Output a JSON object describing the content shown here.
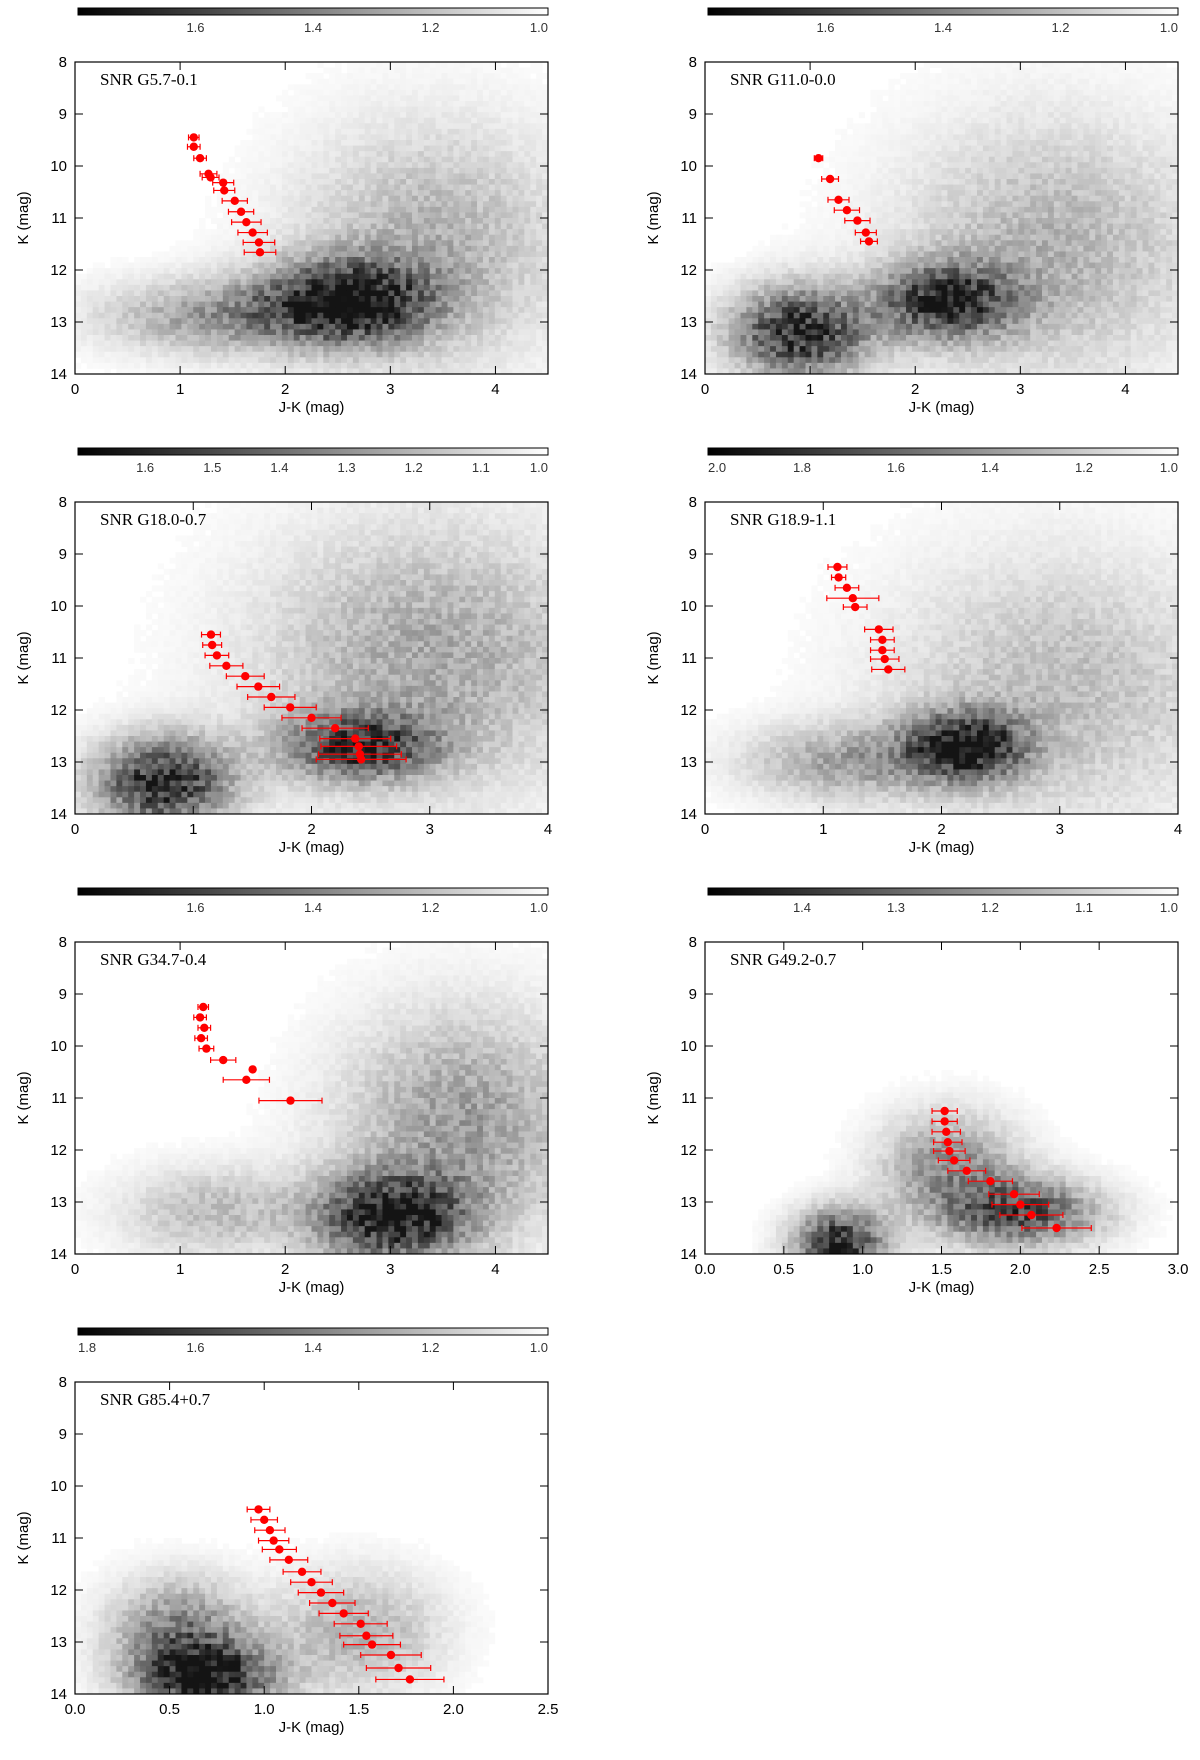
{
  "chart_data": [
    {
      "type": "scatter",
      "title": "SNR G5.7-0.1",
      "xlabel": "J-K (mag)",
      "ylabel": "K (mag)",
      "xlim": [
        0,
        4.5
      ],
      "ylim": [
        14,
        8
      ],
      "xticks": [
        "0",
        "1",
        "2",
        "3",
        "4"
      ],
      "yticks": [
        "8",
        "9",
        "10",
        "11",
        "12",
        "13",
        "14"
      ],
      "colorbar": {
        "ticks": [
          "1.6",
          "1.4",
          "1.2",
          "1.0"
        ],
        "values": [
          1.6,
          1.4,
          1.2,
          1.0
        ],
        "range": [
          1.8,
          1.0
        ]
      },
      "density_peaks": [
        {
          "x": 2.6,
          "y": 12.6,
          "sx": 0.55,
          "sy": 0.55,
          "w": 1.0
        },
        {
          "x": 1.4,
          "y": 12.9,
          "sx": 0.8,
          "sy": 0.5,
          "w": 0.45
        },
        {
          "x": 3.4,
          "y": 11.5,
          "sx": 0.9,
          "sy": 1.6,
          "w": 0.35
        }
      ],
      "x": [
        1.13,
        1.13,
        1.19,
        1.27,
        1.29,
        1.41,
        1.42,
        1.52,
        1.58,
        1.63,
        1.69,
        1.75,
        1.76
      ],
      "y": [
        9.45,
        9.63,
        9.85,
        10.15,
        10.22,
        10.32,
        10.47,
        10.67,
        10.88,
        11.08,
        11.28,
        11.47,
        11.66
      ],
      "xerr": [
        0.05,
        0.06,
        0.06,
        0.08,
        0.08,
        0.1,
        0.1,
        0.12,
        0.12,
        0.14,
        0.14,
        0.15,
        0.15
      ]
    },
    {
      "type": "scatter",
      "title": "SNR G11.0-0.0",
      "xlabel": "J-K (mag)",
      "ylabel": "K (mag)",
      "xlim": [
        0,
        4.5
      ],
      "ylim": [
        14,
        8
      ],
      "xticks": [
        "0",
        "1",
        "2",
        "3",
        "4"
      ],
      "yticks": [
        "8",
        "9",
        "10",
        "11",
        "12",
        "13",
        "14"
      ],
      "colorbar": {
        "ticks": [
          "1.6",
          "1.4",
          "1.2",
          "1.0"
        ],
        "values": [
          1.6,
          1.4,
          1.2,
          1.0
        ],
        "range": [
          1.8,
          1.0
        ]
      },
      "density_peaks": [
        {
          "x": 2.3,
          "y": 12.6,
          "sx": 0.45,
          "sy": 0.5,
          "w": 0.9
        },
        {
          "x": 0.9,
          "y": 13.2,
          "sx": 0.45,
          "sy": 0.6,
          "w": 1.0
        },
        {
          "x": 3.3,
          "y": 11.6,
          "sx": 1.0,
          "sy": 1.7,
          "w": 0.35
        }
      ],
      "x": [
        1.08,
        1.19,
        1.27,
        1.35,
        1.45,
        1.53,
        1.56
      ],
      "y": [
        9.85,
        10.25,
        10.65,
        10.85,
        11.05,
        11.28,
        11.45
      ],
      "xerr": [
        0.04,
        0.08,
        0.1,
        0.12,
        0.12,
        0.1,
        0.08
      ]
    },
    {
      "type": "scatter",
      "title": "SNR G18.0-0.7",
      "xlabel": "J-K (mag)",
      "ylabel": "K (mag)",
      "xlim": [
        0,
        4
      ],
      "ylim": [
        14,
        8
      ],
      "xticks": [
        "0",
        "1",
        "2",
        "3",
        "4"
      ],
      "yticks": [
        "8",
        "9",
        "10",
        "11",
        "12",
        "13",
        "14"
      ],
      "colorbar": {
        "ticks": [
          "1.6",
          "1.5",
          "1.4",
          "1.3",
          "1.2",
          "1.1",
          "1.0"
        ],
        "values": [
          1.6,
          1.5,
          1.4,
          1.3,
          1.2,
          1.1,
          1.0
        ],
        "range": [
          1.7,
          1.0
        ]
      },
      "density_peaks": [
        {
          "x": 0.75,
          "y": 13.4,
          "sx": 0.4,
          "sy": 0.6,
          "w": 1.0
        },
        {
          "x": 2.4,
          "y": 12.7,
          "sx": 0.45,
          "sy": 0.45,
          "w": 0.8
        },
        {
          "x": 3.0,
          "y": 11.0,
          "sx": 1.0,
          "sy": 1.8,
          "w": 0.4
        }
      ],
      "x": [
        1.15,
        1.16,
        1.2,
        1.28,
        1.44,
        1.55,
        1.66,
        1.82,
        2.0,
        2.2,
        2.37,
        2.4,
        2.41,
        2.42
      ],
      "y": [
        10.55,
        10.75,
        10.95,
        11.15,
        11.35,
        11.55,
        11.75,
        11.95,
        12.15,
        12.35,
        12.55,
        12.7,
        12.85,
        12.95
      ],
      "xerr": [
        0.08,
        0.08,
        0.1,
        0.14,
        0.16,
        0.18,
        0.2,
        0.22,
        0.25,
        0.28,
        0.3,
        0.32,
        0.35,
        0.38
      ]
    },
    {
      "type": "scatter",
      "title": "SNR G18.9-1.1",
      "xlabel": "J-K (mag)",
      "ylabel": "K (mag)",
      "xlim": [
        0,
        4
      ],
      "ylim": [
        14,
        8
      ],
      "xticks": [
        "0",
        "1",
        "2",
        "3",
        "4"
      ],
      "yticks": [
        "8",
        "9",
        "10",
        "11",
        "12",
        "13",
        "14"
      ],
      "colorbar": {
        "ticks": [
          "2.0",
          "1.8",
          "1.6",
          "1.4",
          "1.2",
          "1.0"
        ],
        "values": [
          2.0,
          1.8,
          1.6,
          1.4,
          1.2,
          1.0
        ],
        "range": [
          2.0,
          1.0
        ]
      },
      "density_peaks": [
        {
          "x": 2.2,
          "y": 12.7,
          "sx": 0.35,
          "sy": 0.45,
          "w": 1.0
        },
        {
          "x": 1.2,
          "y": 13.0,
          "sx": 0.6,
          "sy": 0.5,
          "w": 0.4
        },
        {
          "x": 3.0,
          "y": 11.6,
          "sx": 1.0,
          "sy": 1.8,
          "w": 0.3
        }
      ],
      "x": [
        1.12,
        1.13,
        1.2,
        1.25,
        1.27,
        1.47,
        1.5,
        1.5,
        1.52,
        1.55
      ],
      "y": [
        9.25,
        9.45,
        9.65,
        9.85,
        10.02,
        10.45,
        10.65,
        10.85,
        11.02,
        11.22
      ],
      "xerr": [
        0.08,
        0.06,
        0.1,
        0.22,
        0.1,
        0.12,
        0.1,
        0.1,
        0.12,
        0.14
      ]
    },
    {
      "type": "scatter",
      "title": "SNR G34.7-0.4",
      "xlabel": "J-K (mag)",
      "ylabel": "K (mag)",
      "xlim": [
        0,
        4.5
      ],
      "ylim": [
        14,
        8
      ],
      "xticks": [
        "0",
        "1",
        "2",
        "3",
        "4"
      ],
      "yticks": [
        "8",
        "9",
        "10",
        "11",
        "12",
        "13",
        "14"
      ],
      "colorbar": {
        "ticks": [
          "1.6",
          "1.4",
          "1.2",
          "1.0"
        ],
        "values": [
          1.6,
          1.4,
          1.2,
          1.0
        ],
        "range": [
          1.8,
          1.0
        ]
      },
      "density_peaks": [
        {
          "x": 3.0,
          "y": 13.3,
          "sx": 0.5,
          "sy": 0.6,
          "w": 1.0
        },
        {
          "x": 3.7,
          "y": 11.5,
          "sx": 0.8,
          "sy": 1.5,
          "w": 0.45
        },
        {
          "x": 1.3,
          "y": 13.2,
          "sx": 0.6,
          "sy": 0.6,
          "w": 0.3
        }
      ],
      "x": [
        1.22,
        1.19,
        1.23,
        1.2,
        1.25,
        1.41,
        1.69,
        1.63,
        2.05
      ],
      "y": [
        9.25,
        9.45,
        9.65,
        9.85,
        10.05,
        10.27,
        10.45,
        10.65,
        11.05
      ],
      "xerr": [
        0.05,
        0.06,
        0.06,
        0.06,
        0.07,
        0.12,
        0.0,
        0.22,
        0.3
      ]
    },
    {
      "type": "scatter",
      "title": "SNR G49.2-0.7",
      "xlabel": "J-K (mag)",
      "ylabel": "K (mag)",
      "xlim": [
        0,
        3
      ],
      "ylim": [
        14,
        8
      ],
      "xticks": [
        "0.0",
        "0.5",
        "1.0",
        "1.5",
        "2.0",
        "2.5",
        "3.0"
      ],
      "yticks": [
        "8",
        "9",
        "10",
        "11",
        "12",
        "13",
        "14"
      ],
      "colorbar": {
        "ticks": [
          "1.4",
          "1.3",
          "1.2",
          "1.1",
          "1.0"
        ],
        "values": [
          1.4,
          1.3,
          1.2,
          1.1,
          1.0
        ],
        "range": [
          1.5,
          1.0
        ]
      },
      "density_peaks": [
        {
          "x": 0.85,
          "y": 13.8,
          "sx": 0.2,
          "sy": 0.45,
          "w": 1.0
        },
        {
          "x": 2.0,
          "y": 13.2,
          "sx": 0.35,
          "sy": 0.45,
          "w": 0.8
        },
        {
          "x": 1.55,
          "y": 12.3,
          "sx": 0.3,
          "sy": 0.7,
          "w": 0.5
        }
      ],
      "x": [
        1.52,
        1.52,
        1.53,
        1.54,
        1.55,
        1.58,
        1.66,
        1.81,
        1.96,
        2.0,
        2.07,
        2.23
      ],
      "y": [
        11.25,
        11.45,
        11.65,
        11.85,
        12.02,
        12.2,
        12.4,
        12.6,
        12.85,
        13.05,
        13.25,
        13.5
      ],
      "xerr": [
        0.08,
        0.08,
        0.09,
        0.09,
        0.1,
        0.1,
        0.12,
        0.14,
        0.16,
        0.18,
        0.2,
        0.22
      ]
    },
    {
      "type": "scatter",
      "title": "SNR G85.4+0.7",
      "xlabel": "J-K (mag)",
      "ylabel": "K (mag)",
      "xlim": [
        0,
        2.5
      ],
      "ylim": [
        14,
        8
      ],
      "xticks": [
        "0.0",
        "0.5",
        "1.0",
        "1.5",
        "2.0",
        "2.5"
      ],
      "yticks": [
        "8",
        "9",
        "10",
        "11",
        "12",
        "13",
        "14"
      ],
      "colorbar": {
        "ticks": [
          "1.8",
          "1.6",
          "1.4",
          "1.2",
          "1.0"
        ],
        "values": [
          1.8,
          1.6,
          1.4,
          1.2,
          1.0
        ],
        "range": [
          1.8,
          1.0
        ]
      },
      "density_peaks": [
        {
          "x": 0.7,
          "y": 13.7,
          "sx": 0.25,
          "sy": 0.5,
          "w": 1.0
        },
        {
          "x": 0.55,
          "y": 12.8,
          "sx": 0.25,
          "sy": 0.7,
          "w": 0.55
        },
        {
          "x": 1.5,
          "y": 12.8,
          "sx": 0.3,
          "sy": 0.8,
          "w": 0.35
        }
      ],
      "x": [
        0.97,
        1.0,
        1.03,
        1.05,
        1.08,
        1.13,
        1.2,
        1.25,
        1.3,
        1.36,
        1.42,
        1.51,
        1.54,
        1.57,
        1.67,
        1.71,
        1.77
      ],
      "y": [
        10.45,
        10.65,
        10.85,
        11.05,
        11.22,
        11.42,
        11.65,
        11.85,
        12.05,
        12.25,
        12.45,
        12.65,
        12.88,
        13.05,
        13.25,
        13.5,
        13.72
      ],
      "xerr": [
        0.06,
        0.07,
        0.08,
        0.08,
        0.09,
        0.1,
        0.1,
        0.11,
        0.12,
        0.12,
        0.13,
        0.14,
        0.14,
        0.15,
        0.16,
        0.17,
        0.18
      ]
    }
  ]
}
